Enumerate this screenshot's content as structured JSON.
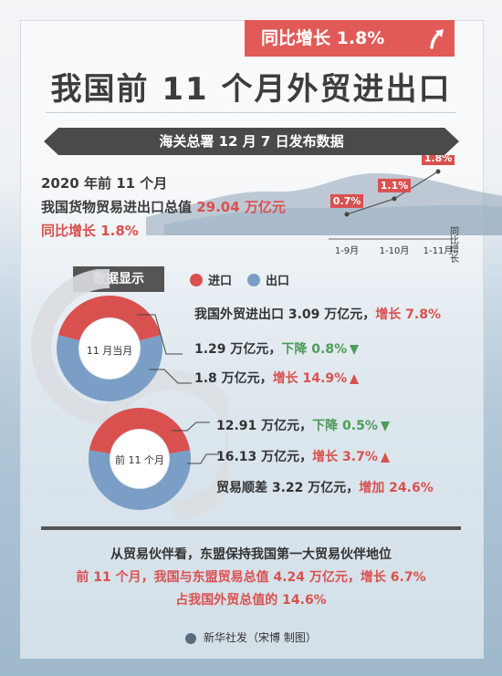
{
  "badge": {
    "text": "同比增长 1.8%"
  },
  "title": "我国前 11 个月外贸进出口",
  "banner": "海关总署 12 月 7 日发布数据",
  "summary": {
    "line1": "2020 年前 11 个月",
    "line2_prefix": "我国货物贸易进出口总值 ",
    "line2_value": "29.04 万亿元",
    "line3": "同比增长 1.8%"
  },
  "chart_data": {
    "type": "line",
    "categories": [
      "1-9月",
      "1-10月",
      "1-11月"
    ],
    "values": [
      0.7,
      1.1,
      1.8
    ],
    "labels": [
      "0.7%",
      "1.1%",
      "1.8%"
    ],
    "ylabel": "同比增长",
    "color": "#d9514f"
  },
  "section": {
    "tag": "数据显示",
    "legend": [
      {
        "label": "进口",
        "color": "#d9514f"
      },
      {
        "label": "出口",
        "color": "#7b9ec6"
      }
    ]
  },
  "donut1": {
    "label": "11 月当月",
    "import_share": 0.418,
    "colors": {
      "import": "#d9514f",
      "export": "#7b9ec6"
    }
  },
  "donut2": {
    "label": "前 11 个月",
    "import_share": 0.445,
    "colors": {
      "import": "#d9514f",
      "export": "#7b9ec6"
    }
  },
  "month": {
    "total_prefix": "我国外贸进出口 3.09 万亿元，",
    "total_change": "增长 7.8%",
    "import_prefix": "1.29 万亿元，",
    "import_change": "下降 0.8%",
    "export_prefix": "1.8 万亿元，",
    "export_change": "增长 14.9%"
  },
  "ytd": {
    "import_prefix": "12.91 万亿元，",
    "import_change": "下降 0.5%",
    "export_prefix": "16.13 万亿元，",
    "export_change": "增长 3.7%",
    "surplus_prefix": "贸易顺差 3.22 万亿元，",
    "surplus_change": "增加 24.6%"
  },
  "footer": {
    "line1": "从贸易伙伴看，东盟保持我国第一大贸易伙伴地位",
    "line2": "前 11 个月，我国与东盟贸易总值 4.24 万亿元，增长 6.7%",
    "line3": "占我国外贸总值的 14.6%"
  },
  "credit": "新华社发（宋博 制图）"
}
